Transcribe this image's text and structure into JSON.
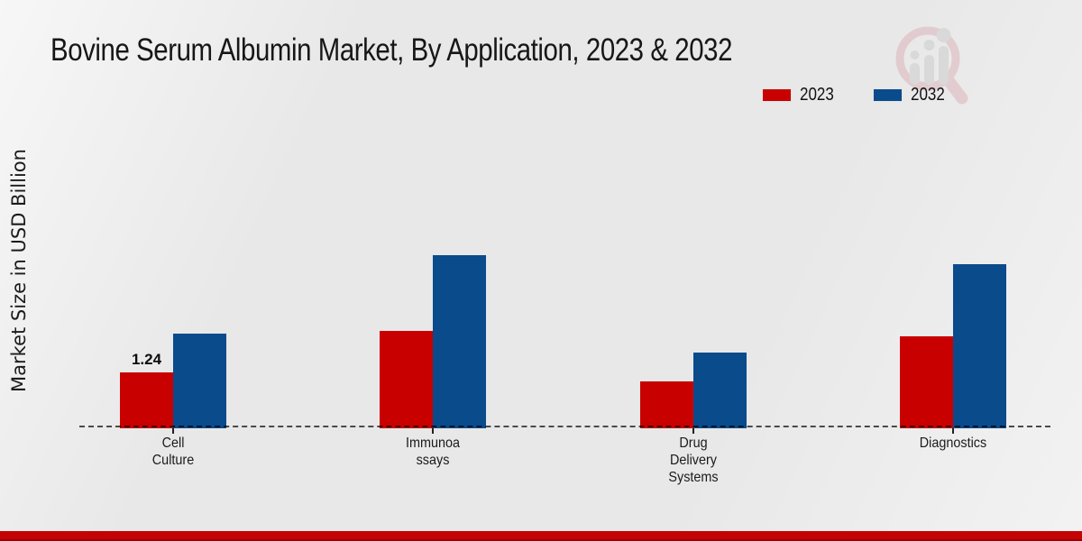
{
  "title": "Bovine Serum Albumin Market, By Application, 2023 & 2032",
  "y_axis_label": "Market Size in USD Billion",
  "legend": {
    "items": [
      {
        "label": "2023",
        "color": "#c80000"
      },
      {
        "label": "2032",
        "color": "#0a4b8c"
      }
    ]
  },
  "chart_data": {
    "type": "bar",
    "title": "Bovine Serum Albumin Market, By Application, 2023 & 2032",
    "xlabel": "",
    "ylabel": "Market Size in USD Billion",
    "units": "USD Billion",
    "legend_position": "top-right",
    "grid": false,
    "baseline_style": "dashed",
    "ylim": [
      0,
      4.5
    ],
    "categories": [
      "Cell Culture",
      "Immunoassays",
      "Drug Delivery Systems",
      "Diagnostics"
    ],
    "category_label_lines": [
      [
        "Cell",
        "Culture"
      ],
      [
        "Immunoa",
        "ssays"
      ],
      [
        "Drug",
        "Delivery",
        "Systems"
      ],
      [
        "Diagnostics"
      ]
    ],
    "series": [
      {
        "name": "2023",
        "color": "#c80000",
        "values": [
          1.24,
          2.16,
          1.04,
          2.04
        ],
        "bar_labels": [
          "1.24",
          "",
          "",
          ""
        ]
      },
      {
        "name": "2032",
        "color": "#0a4b8c",
        "values": [
          2.1,
          3.84,
          1.68,
          3.64
        ],
        "bar_labels": [
          "",
          "",
          "",
          ""
        ]
      }
    ]
  },
  "watermark": {
    "name": "magnifier-bar-chart-logo",
    "ring_color": "#dcb4ba",
    "bars_color": "#cccccc"
  },
  "footer": {
    "accent_color": "#c40404"
  }
}
